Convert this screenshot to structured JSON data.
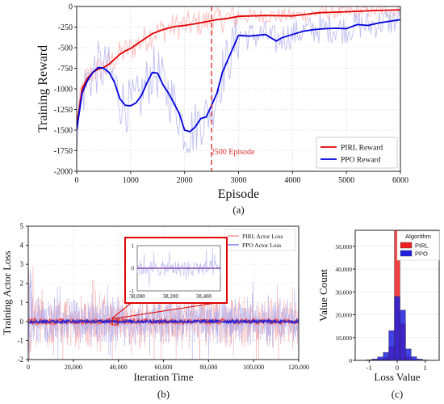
{
  "chart_data": [
    {
      "type": "line",
      "caption": "(a)",
      "xlabel": "Episode",
      "ylabel": "Training Reward",
      "xlim": [
        0,
        6000
      ],
      "ylim": [
        -2000,
        0
      ],
      "xticks": [
        0,
        1000,
        2000,
        3000,
        4000,
        5000,
        6000
      ],
      "yticks": [
        0,
        -250,
        -500,
        -750,
        -1000,
        -1250,
        -1500,
        -1750,
        -2000
      ],
      "grid": true,
      "legend_position": "bottom-right",
      "annotation": {
        "x": 2500,
        "text": "2500 Episode",
        "color": "#e03030"
      },
      "series": [
        {
          "name": "PIRL Reward",
          "color": "#e00000",
          "x": [
            0,
            100,
            200,
            300,
            400,
            500,
            600,
            700,
            800,
            900,
            1000,
            1200,
            1400,
            1600,
            1800,
            2000,
            2200,
            2400,
            2600,
            2800,
            3000,
            3500,
            4000,
            4500,
            5000,
            5500,
            6000
          ],
          "values": [
            -1450,
            -1000,
            -870,
            -800,
            -760,
            -740,
            -700,
            -640,
            -580,
            -540,
            -510,
            -420,
            -330,
            -280,
            -245,
            -230,
            -210,
            -185,
            -160,
            -145,
            -120,
            -110,
            -115,
            -75,
            -65,
            -50,
            -40
          ]
        },
        {
          "name": "PPO Reward",
          "color": "#0000dd",
          "x": [
            0,
            100,
            200,
            300,
            400,
            500,
            600,
            700,
            800,
            900,
            1000,
            1100,
            1200,
            1300,
            1400,
            1500,
            1600,
            1700,
            1800,
            1900,
            2000,
            2100,
            2200,
            2300,
            2400,
            2500,
            2600,
            2700,
            2800,
            2900,
            3000,
            3200,
            3500,
            3700,
            3800,
            4000,
            4200,
            4400,
            4600,
            4800,
            5000,
            5200,
            5400,
            5600,
            5800,
            6000
          ],
          "values": [
            -1500,
            -1050,
            -900,
            -800,
            -740,
            -750,
            -800,
            -920,
            -1120,
            -1200,
            -1205,
            -1170,
            -1080,
            -930,
            -800,
            -810,
            -950,
            -1050,
            -1170,
            -1300,
            -1500,
            -1520,
            -1460,
            -1360,
            -1340,
            -1200,
            -1050,
            -800,
            -650,
            -500,
            -350,
            -360,
            -340,
            -420,
            -380,
            -340,
            -300,
            -280,
            -270,
            -265,
            -270,
            -220,
            -230,
            -200,
            -180,
            -160
          ]
        }
      ]
    },
    {
      "type": "line",
      "caption": "(b)",
      "xlabel": "Iteration Time",
      "ylabel": "Training Actor Loss",
      "xlim": [
        0,
        120000
      ],
      "ylim": [
        -2,
        5
      ],
      "xticks": [
        "0",
        "20,000",
        "40,000",
        "60,000",
        "80,000",
        "100,000",
        "120,000"
      ],
      "yticks": [
        -2,
        -1,
        0,
        1,
        2,
        3,
        4,
        5
      ],
      "grid": true,
      "legend_position": "top-right",
      "series": [
        {
          "name": "PIRL Actor Loss",
          "color": "#f08080"
        },
        {
          "name": "PPO Actor Loss",
          "color": "#6060f0"
        }
      ],
      "inset": {
        "xlim": [
          38000,
          38500
        ],
        "ylim": [
          -1,
          1
        ],
        "xticks": [
          "38,000",
          "38,200",
          "38,400"
        ],
        "yticks": [
          -1,
          0,
          1
        ]
      }
    },
    {
      "type": "bar",
      "caption": "(c)",
      "xlabel": "Loss Value",
      "ylabel": "Value Count",
      "xlim": [
        -1.5,
        1.5
      ],
      "ylim": [
        0,
        57000
      ],
      "xticks": [
        -1,
        0,
        1
      ],
      "yticks": [
        "0",
        "10,000",
        "20,000",
        "30,000",
        "40,000",
        "50,000"
      ],
      "legend_title": "Algorithm",
      "legend_position": "top-right",
      "bin_edges": [
        -1.3,
        -1.1,
        -0.9,
        -0.7,
        -0.5,
        -0.3,
        -0.1,
        0.1,
        0.3,
        0.5,
        0.7,
        0.9,
        1.1,
        1.3
      ],
      "series": [
        {
          "name": "PIRL",
          "color": "#ee2020",
          "values": [
            0,
            100,
            200,
            500,
            1200,
            6000,
            57000,
            16000,
            1500,
            400,
            150,
            50,
            0
          ]
        },
        {
          "name": "PPO",
          "color": "#2020e0",
          "values": [
            80,
            250,
            600,
            1500,
            3500,
            13000,
            28000,
            22000,
            5000,
            1600,
            600,
            200,
            80
          ]
        }
      ]
    }
  ]
}
